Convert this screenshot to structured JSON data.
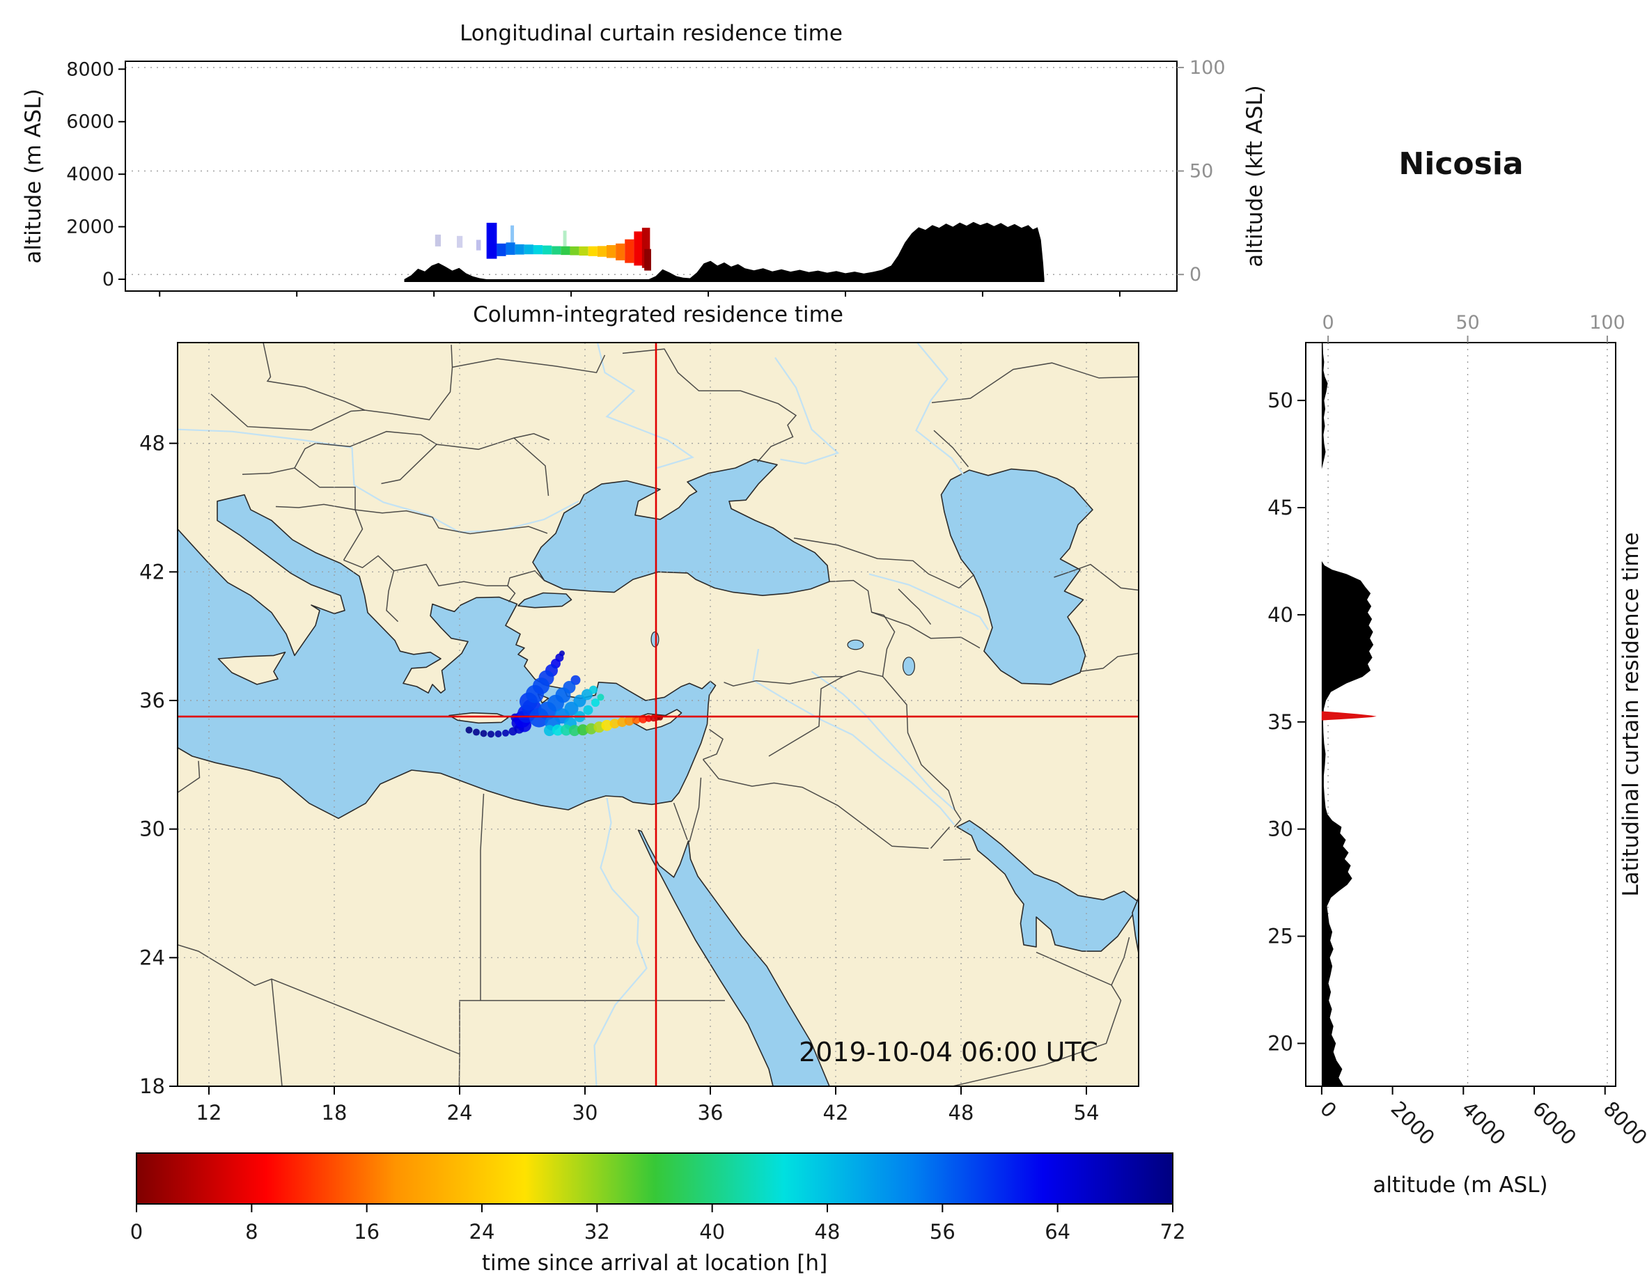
{
  "page": {
    "background": "#ffffff"
  },
  "chart_data": {
    "type": "heatmap",
    "station": "Nicosia",
    "datetime_label": "2019-10-04 06:00 UTC",
    "colors": {
      "land": "#f7efd3",
      "water": "#99cfee",
      "terrain": "#000000",
      "crosshair": "#e00000",
      "grid": "#9a9a9a",
      "axis_gray": "#909090",
      "border": "#3a3a3a",
      "river": "#c2e2f4",
      "red_profile": "#dd1111"
    },
    "colorbar": {
      "label": "time since arrival at location [h]",
      "min": 0,
      "max": 72,
      "ticks": [
        0,
        8,
        16,
        24,
        32,
        40,
        48,
        56,
        64,
        72
      ],
      "stops": [
        {
          "t": 0.0,
          "c": "#7f0000"
        },
        {
          "t": 0.125,
          "c": "#ff0000"
        },
        {
          "t": 0.25,
          "c": "#ff9400"
        },
        {
          "t": 0.375,
          "c": "#ffe200"
        },
        {
          "t": 0.5,
          "c": "#37c837"
        },
        {
          "t": 0.625,
          "c": "#00e0e0"
        },
        {
          "t": 0.75,
          "c": "#0080f0"
        },
        {
          "t": 0.875,
          "c": "#0000f0"
        },
        {
          "t": 1.0,
          "c": "#000080"
        }
      ]
    },
    "top_panel": {
      "title": "Longitudinal curtain residence time",
      "ylabel": "altitude (m ASL)",
      "yticks": [
        0,
        2000,
        4000,
        6000,
        8000
      ],
      "ylim": [
        -450,
        8300
      ],
      "right_ylabel": "altitude (kft ASL)",
      "right_yticks": [
        0,
        50,
        100
      ],
      "right_ylim": [
        -8,
        103
      ],
      "xlim": [
        10.5,
        56.5
      ],
      "terrain": [
        [
          22.7,
          0
        ],
        [
          23.0,
          150
        ],
        [
          23.3,
          400
        ],
        [
          23.6,
          300
        ],
        [
          23.9,
          520
        ],
        [
          24.2,
          620
        ],
        [
          24.5,
          480
        ],
        [
          24.8,
          330
        ],
        [
          25.1,
          430
        ],
        [
          25.4,
          230
        ],
        [
          25.7,
          110
        ],
        [
          26.0,
          40
        ],
        [
          26.3,
          0
        ],
        [
          33.4,
          0
        ],
        [
          33.7,
          120
        ],
        [
          34.0,
          380
        ],
        [
          34.3,
          260
        ],
        [
          34.6,
          120
        ],
        [
          34.9,
          60
        ],
        [
          35.2,
          40
        ],
        [
          35.5,
          260
        ],
        [
          35.8,
          600
        ],
        [
          36.1,
          700
        ],
        [
          36.4,
          520
        ],
        [
          36.7,
          640
        ],
        [
          37.0,
          480
        ],
        [
          37.3,
          580
        ],
        [
          37.6,
          420
        ],
        [
          38.0,
          340
        ],
        [
          38.4,
          420
        ],
        [
          38.8,
          300
        ],
        [
          39.2,
          380
        ],
        [
          39.6,
          290
        ],
        [
          40.0,
          360
        ],
        [
          40.4,
          270
        ],
        [
          40.8,
          330
        ],
        [
          41.2,
          250
        ],
        [
          41.6,
          310
        ],
        [
          42.0,
          230
        ],
        [
          42.4,
          290
        ],
        [
          42.8,
          220
        ],
        [
          43.2,
          280
        ],
        [
          43.6,
          360
        ],
        [
          44.0,
          520
        ],
        [
          44.3,
          900
        ],
        [
          44.6,
          1400
        ],
        [
          44.9,
          1750
        ],
        [
          45.2,
          1980
        ],
        [
          45.5,
          1880
        ],
        [
          45.8,
          2060
        ],
        [
          46.1,
          1960
        ],
        [
          46.4,
          2120
        ],
        [
          46.7,
          2000
        ],
        [
          47.0,
          2160
        ],
        [
          47.3,
          2040
        ],
        [
          47.6,
          2180
        ],
        [
          47.9,
          2060
        ],
        [
          48.2,
          2150
        ],
        [
          48.5,
          2020
        ],
        [
          48.8,
          2140
        ],
        [
          49.1,
          1990
        ],
        [
          49.4,
          2100
        ],
        [
          49.7,
          1960
        ],
        [
          50.0,
          2060
        ],
        [
          50.2,
          1900
        ],
        [
          50.4,
          1980
        ],
        [
          50.55,
          1500
        ],
        [
          50.65,
          600
        ],
        [
          50.7,
          0
        ]
      ],
      "curtain": [
        [
          24.05,
          24.3,
          1250,
          1700,
          71,
          0.22
        ],
        [
          25.0,
          25.25,
          1200,
          1650,
          70,
          0.18
        ],
        [
          25.85,
          26.05,
          1100,
          1500,
          68,
          0.25
        ],
        [
          26.3,
          26.75,
          780,
          2150,
          63,
          1
        ],
        [
          26.75,
          27.15,
          880,
          1360,
          58,
          1
        ],
        [
          27.15,
          27.55,
          930,
          1400,
          55,
          1
        ],
        [
          27.35,
          27.5,
          1400,
          2050,
          54,
          0.45
        ],
        [
          27.55,
          27.95,
          940,
          1330,
          52,
          1
        ],
        [
          27.95,
          28.35,
          950,
          1320,
          49,
          1
        ],
        [
          28.35,
          28.75,
          950,
          1300,
          46,
          1
        ],
        [
          28.75,
          29.15,
          945,
          1285,
          43,
          1
        ],
        [
          29.15,
          29.55,
          940,
          1260,
          40,
          1
        ],
        [
          29.55,
          29.95,
          925,
          1255,
          37,
          1
        ],
        [
          29.65,
          29.8,
          1255,
          1850,
          38,
          0.35
        ],
        [
          29.95,
          30.35,
          915,
          1250,
          33,
          1
        ],
        [
          30.35,
          30.75,
          900,
          1250,
          30,
          1
        ],
        [
          30.75,
          31.15,
          880,
          1255,
          26,
          1
        ],
        [
          31.15,
          31.55,
          855,
          1265,
          23,
          1
        ],
        [
          31.55,
          31.95,
          810,
          1300,
          19,
          1
        ],
        [
          31.95,
          32.35,
          720,
          1360,
          16,
          1
        ],
        [
          32.35,
          32.75,
          620,
          1520,
          12,
          1
        ],
        [
          32.75,
          33.15,
          520,
          1820,
          8,
          1
        ],
        [
          33.1,
          33.45,
          430,
          1960,
          4,
          1
        ],
        [
          33.2,
          33.5,
          330,
          1150,
          1,
          1
        ]
      ]
    },
    "map_panel": {
      "title": "Column-integrated residence time",
      "xticks": [
        12,
        18,
        24,
        30,
        36,
        42,
        48,
        54
      ],
      "yticks": [
        18,
        24,
        30,
        36,
        42,
        48
      ],
      "lon_range": [
        10.5,
        56.5
      ],
      "lat_range": [
        18,
        52.7
      ],
      "crosshair": {
        "lon": 33.4,
        "lat": 35.25
      },
      "plume": [
        [
          24.45,
          34.62,
          72,
          5
        ],
        [
          24.8,
          34.52,
          71,
          5
        ],
        [
          25.15,
          34.46,
          71,
          5
        ],
        [
          25.5,
          34.43,
          70,
          5
        ],
        [
          25.85,
          34.44,
          69,
          5
        ],
        [
          26.2,
          34.48,
          68,
          5
        ],
        [
          26.55,
          34.56,
          67,
          6
        ],
        [
          26.85,
          34.68,
          66,
          7
        ],
        [
          26.75,
          34.95,
          65,
          8
        ],
        [
          26.65,
          35.2,
          66,
          6
        ],
        [
          27.1,
          34.85,
          64,
          10
        ],
        [
          27.0,
          35.12,
          63,
          12
        ],
        [
          27.2,
          35.38,
          61,
          13
        ],
        [
          27.45,
          35.62,
          60,
          14
        ],
        [
          27.3,
          35.95,
          59,
          13
        ],
        [
          27.6,
          36.3,
          58,
          13
        ],
        [
          27.9,
          36.68,
          58,
          12
        ],
        [
          28.15,
          37.05,
          59,
          11
        ],
        [
          28.4,
          37.4,
          61,
          9
        ],
        [
          28.6,
          37.72,
          63,
          7
        ],
        [
          28.78,
          38.0,
          65,
          6
        ],
        [
          28.9,
          38.2,
          67,
          4
        ],
        [
          27.8,
          35.2,
          58,
          14
        ],
        [
          28.2,
          35.52,
          57,
          13
        ],
        [
          28.6,
          35.88,
          56,
          12
        ],
        [
          28.95,
          36.25,
          56,
          11
        ],
        [
          29.25,
          36.62,
          57,
          9
        ],
        [
          29.55,
          36.95,
          59,
          7
        ],
        [
          28.45,
          34.95,
          55,
          11
        ],
        [
          28.9,
          35.28,
          54,
          11
        ],
        [
          29.35,
          35.62,
          53,
          10
        ],
        [
          29.75,
          35.98,
          52,
          9
        ],
        [
          30.1,
          36.28,
          50,
          8
        ],
        [
          30.4,
          36.5,
          47,
          6
        ],
        [
          29.3,
          34.92,
          50,
          9
        ],
        [
          29.75,
          35.25,
          49,
          8
        ],
        [
          30.15,
          35.55,
          47,
          7
        ],
        [
          30.5,
          35.9,
          45,
          6
        ],
        [
          30.75,
          36.15,
          43,
          5
        ],
        [
          28.3,
          34.6,
          48,
          8
        ],
        [
          28.7,
          34.62,
          45,
          8
        ],
        [
          29.1,
          34.62,
          42,
          8
        ],
        [
          29.5,
          34.6,
          39,
          8
        ],
        [
          29.9,
          34.63,
          36,
          8
        ],
        [
          30.3,
          34.68,
          33,
          8
        ],
        [
          30.68,
          34.76,
          30,
          8
        ],
        [
          31.05,
          34.84,
          27,
          8
        ],
        [
          31.42,
          34.92,
          24,
          7
        ],
        [
          31.78,
          34.99,
          21,
          7
        ],
        [
          32.12,
          35.05,
          18,
          7
        ],
        [
          32.46,
          35.1,
          15,
          6
        ],
        [
          32.78,
          35.13,
          11,
          6
        ],
        [
          33.05,
          35.16,
          8,
          5
        ],
        [
          33.28,
          35.18,
          5,
          5
        ],
        [
          33.46,
          35.19,
          2,
          4
        ],
        [
          33.6,
          35.2,
          1,
          4
        ]
      ]
    },
    "right_panel": {
      "xlabel": "altitude (m ASL)",
      "xticks": [
        0,
        2000,
        4000,
        6000,
        8000
      ],
      "xlim": [
        -450,
        8300
      ],
      "top_xticks": [
        0,
        50,
        100
      ],
      "top_xlim": [
        -8,
        103
      ],
      "right_label": "Latitudinal curtain residence time",
      "yticks": [
        20,
        25,
        30,
        35,
        40,
        45,
        50
      ],
      "terrain": [
        [
          18,
          620
        ],
        [
          18.4,
          480
        ],
        [
          18.8,
          580
        ],
        [
          19.2,
          420
        ],
        [
          19.6,
          330
        ],
        [
          20.0,
          400
        ],
        [
          20.4,
          280
        ],
        [
          20.8,
          330
        ],
        [
          21.2,
          230
        ],
        [
          21.6,
          290
        ],
        [
          22.0,
          200
        ],
        [
          22.4,
          260
        ],
        [
          22.8,
          190
        ],
        [
          23.2,
          250
        ],
        [
          23.6,
          300
        ],
        [
          24.0,
          230
        ],
        [
          24.4,
          330
        ],
        [
          24.8,
          240
        ],
        [
          25.2,
          300
        ],
        [
          25.6,
          210
        ],
        [
          26.0,
          180
        ],
        [
          26.4,
          150
        ],
        [
          26.8,
          260
        ],
        [
          27.1,
          480
        ],
        [
          27.4,
          720
        ],
        [
          27.7,
          860
        ],
        [
          28.0,
          740
        ],
        [
          28.3,
          820
        ],
        [
          28.6,
          650
        ],
        [
          28.9,
          760
        ],
        [
          29.2,
          600
        ],
        [
          29.5,
          680
        ],
        [
          29.8,
          520
        ],
        [
          30.1,
          560
        ],
        [
          30.4,
          300
        ],
        [
          30.7,
          160
        ],
        [
          31.0,
          110
        ],
        [
          31.5,
          80
        ],
        [
          32.0,
          60
        ],
        [
          32.5,
          60
        ],
        [
          33.0,
          90
        ],
        [
          33.5,
          110
        ],
        [
          34.0,
          70
        ],
        [
          34.5,
          50
        ],
        [
          35.0,
          40
        ],
        [
          35.6,
          60
        ],
        [
          36.0,
          120
        ],
        [
          36.4,
          260
        ],
        [
          36.8,
          700
        ],
        [
          37.1,
          1150
        ],
        [
          37.4,
          1380
        ],
        [
          37.7,
          1300
        ],
        [
          38.0,
          1430
        ],
        [
          38.3,
          1340
        ],
        [
          38.6,
          1460
        ],
        [
          38.9,
          1360
        ],
        [
          39.2,
          1450
        ],
        [
          39.5,
          1330
        ],
        [
          39.8,
          1420
        ],
        [
          40.1,
          1300
        ],
        [
          40.4,
          1400
        ],
        [
          40.7,
          1280
        ],
        [
          41.0,
          1380
        ],
        [
          41.3,
          1230
        ],
        [
          41.6,
          1100
        ],
        [
          41.9,
          700
        ],
        [
          42.1,
          300
        ],
        [
          42.3,
          80
        ],
        [
          42.5,
          0
        ],
        [
          46.8,
          0
        ],
        [
          47.2,
          60
        ],
        [
          47.6,
          110
        ],
        [
          48.0,
          70
        ],
        [
          48.4,
          50
        ],
        [
          48.8,
          90
        ],
        [
          49.2,
          60
        ],
        [
          49.6,
          100
        ],
        [
          50.0,
          70
        ],
        [
          50.4,
          130
        ],
        [
          50.8,
          170
        ],
        [
          51.1,
          90
        ],
        [
          51.4,
          50
        ],
        [
          51.8,
          70
        ],
        [
          52.2,
          40
        ],
        [
          52.7,
          30
        ]
      ],
      "red_profile": [
        [
          0,
          35.5
        ],
        [
          500,
          35.44
        ],
        [
          1000,
          35.37
        ],
        [
          1400,
          35.3
        ],
        [
          1550,
          35.26
        ],
        [
          1400,
          35.22
        ],
        [
          1000,
          35.17
        ],
        [
          500,
          35.12
        ],
        [
          0,
          35.07
        ]
      ]
    }
  }
}
